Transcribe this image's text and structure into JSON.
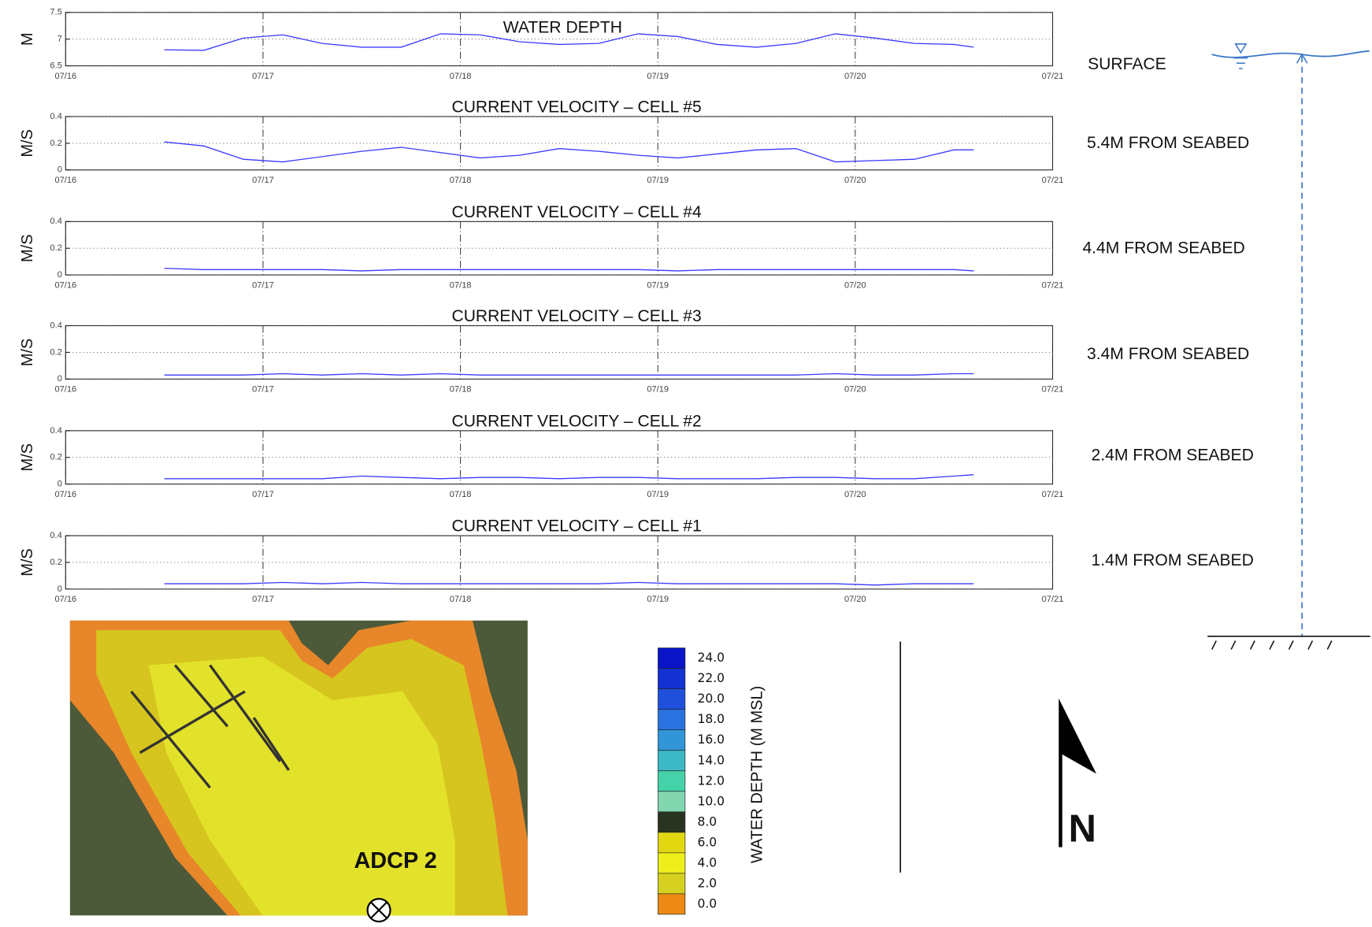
{
  "chart_data": [
    {
      "type": "line",
      "title": "WATER DEPTH",
      "ylabel": "M",
      "x": [
        16.5,
        16.7,
        16.9,
        17.1,
        17.3,
        17.5,
        17.7,
        17.9,
        18.1,
        18.3,
        18.5,
        18.7,
        18.9,
        19.1,
        19.3,
        19.5,
        19.7,
        19.9,
        20.1,
        20.3,
        20.5,
        20.6
      ],
      "series": [
        {
          "color": "#3a3aff",
          "values": [
            6.8,
            6.79,
            7.02,
            7.08,
            6.92,
            6.85,
            6.85,
            7.1,
            7.08,
            6.95,
            6.9,
            6.92,
            7.1,
            7.05,
            6.9,
            6.85,
            6.92,
            7.1,
            7.02,
            6.92,
            6.9,
            6.85
          ]
        }
      ],
      "xlim": [
        16,
        21
      ],
      "xticks": [
        {
          "value": 16,
          "label": "07/16"
        },
        {
          "value": 17,
          "label": "07/17"
        },
        {
          "value": 18,
          "label": "07/18"
        },
        {
          "value": 19,
          "label": "07/19"
        },
        {
          "value": 20,
          "label": "07/20"
        },
        {
          "value": 21,
          "label": "07/21"
        }
      ],
      "ylim": [
        6.5,
        7.5
      ],
      "yticks": [
        6.5,
        7,
        7.5
      ],
      "grid": true
    },
    {
      "type": "line",
      "title": "CURRENT VELOCITY – CELL #5",
      "ylabel": "M/S",
      "x": [
        16.5,
        16.7,
        16.9,
        17.1,
        17.3,
        17.5,
        17.7,
        17.9,
        18.1,
        18.3,
        18.5,
        18.7,
        18.9,
        19.1,
        19.3,
        19.5,
        19.7,
        19.9,
        20.1,
        20.3,
        20.5,
        20.6
      ],
      "series": [
        {
          "color": "#3a3aff",
          "values": [
            0.21,
            0.18,
            0.08,
            0.06,
            0.1,
            0.14,
            0.17,
            0.13,
            0.09,
            0.11,
            0.16,
            0.14,
            0.11,
            0.09,
            0.12,
            0.15,
            0.16,
            0.06,
            0.07,
            0.08,
            0.15,
            0.15
          ]
        }
      ],
      "xlim": [
        16,
        21
      ],
      "xticks": [
        {
          "value": 16,
          "label": "07/16"
        },
        {
          "value": 17,
          "label": "07/17"
        },
        {
          "value": 18,
          "label": "07/18"
        },
        {
          "value": 19,
          "label": "07/19"
        },
        {
          "value": 20,
          "label": "07/20"
        },
        {
          "value": 21,
          "label": "07/21"
        }
      ],
      "ylim": [
        0,
        0.4
      ],
      "yticks": [
        0,
        0.2,
        0.4
      ],
      "grid": true
    },
    {
      "type": "line",
      "title": "CURRENT VELOCITY – CELL #4",
      "ylabel": "M/S",
      "x": [
        16.5,
        16.7,
        16.9,
        17.1,
        17.3,
        17.5,
        17.7,
        17.9,
        18.1,
        18.3,
        18.5,
        18.7,
        18.9,
        19.1,
        19.3,
        19.5,
        19.7,
        19.9,
        20.1,
        20.3,
        20.5,
        20.6
      ],
      "series": [
        {
          "color": "#3a3aff",
          "values": [
            0.05,
            0.04,
            0.04,
            0.04,
            0.04,
            0.03,
            0.04,
            0.04,
            0.04,
            0.04,
            0.04,
            0.04,
            0.04,
            0.03,
            0.04,
            0.04,
            0.04,
            0.04,
            0.04,
            0.04,
            0.04,
            0.03
          ]
        }
      ],
      "xlim": [
        16,
        21
      ],
      "xticks": [
        {
          "value": 16,
          "label": "07/16"
        },
        {
          "value": 17,
          "label": "07/17"
        },
        {
          "value": 18,
          "label": "07/18"
        },
        {
          "value": 19,
          "label": "07/19"
        },
        {
          "value": 20,
          "label": "07/20"
        },
        {
          "value": 21,
          "label": "07/21"
        }
      ],
      "ylim": [
        0,
        0.4
      ],
      "yticks": [
        0,
        0.2,
        0.4
      ],
      "grid": true
    },
    {
      "type": "line",
      "title": "CURRENT VELOCITY – CELL #3",
      "ylabel": "M/S",
      "x": [
        16.5,
        16.7,
        16.9,
        17.1,
        17.3,
        17.5,
        17.7,
        17.9,
        18.1,
        18.3,
        18.5,
        18.7,
        18.9,
        19.1,
        19.3,
        19.5,
        19.7,
        19.9,
        20.1,
        20.3,
        20.5,
        20.6
      ],
      "series": [
        {
          "color": "#3a3aff",
          "values": [
            0.03,
            0.03,
            0.03,
            0.04,
            0.03,
            0.04,
            0.03,
            0.04,
            0.03,
            0.03,
            0.03,
            0.03,
            0.03,
            0.03,
            0.03,
            0.03,
            0.03,
            0.04,
            0.03,
            0.03,
            0.04,
            0.04
          ]
        }
      ],
      "xlim": [
        16,
        21
      ],
      "xticks": [
        {
          "value": 16,
          "label": "07/16"
        },
        {
          "value": 17,
          "label": "07/17"
        },
        {
          "value": 18,
          "label": "07/18"
        },
        {
          "value": 19,
          "label": "07/19"
        },
        {
          "value": 20,
          "label": "07/20"
        },
        {
          "value": 21,
          "label": "07/21"
        }
      ],
      "ylim": [
        0,
        0.4
      ],
      "yticks": [
        0,
        0.2,
        0.4
      ],
      "grid": true
    },
    {
      "type": "line",
      "title": "CURRENT VELOCITY – CELL #2",
      "ylabel": "M/S",
      "x": [
        16.5,
        16.7,
        16.9,
        17.1,
        17.3,
        17.5,
        17.7,
        17.9,
        18.1,
        18.3,
        18.5,
        18.7,
        18.9,
        19.1,
        19.3,
        19.5,
        19.7,
        19.9,
        20.1,
        20.3,
        20.5,
        20.6
      ],
      "series": [
        {
          "color": "#3a3aff",
          "values": [
            0.04,
            0.04,
            0.04,
            0.04,
            0.04,
            0.06,
            0.05,
            0.04,
            0.05,
            0.05,
            0.04,
            0.05,
            0.05,
            0.04,
            0.04,
            0.04,
            0.05,
            0.05,
            0.04,
            0.04,
            0.06,
            0.07
          ]
        }
      ],
      "xlim": [
        16,
        21
      ],
      "xticks": [
        {
          "value": 16,
          "label": "07/16"
        },
        {
          "value": 17,
          "label": "07/17"
        },
        {
          "value": 18,
          "label": "07/18"
        },
        {
          "value": 19,
          "label": "07/19"
        },
        {
          "value": 20,
          "label": "07/20"
        },
        {
          "value": 21,
          "label": "07/21"
        }
      ],
      "ylim": [
        0,
        0.4
      ],
      "yticks": [
        0,
        0.2,
        0.4
      ],
      "grid": true
    },
    {
      "type": "line",
      "title": "CURRENT VELOCITY – CELL #1",
      "ylabel": "M/S",
      "x": [
        16.5,
        16.7,
        16.9,
        17.1,
        17.3,
        17.5,
        17.7,
        17.9,
        18.1,
        18.3,
        18.5,
        18.7,
        18.9,
        19.1,
        19.3,
        19.5,
        19.7,
        19.9,
        20.1,
        20.3,
        20.5,
        20.6
      ],
      "series": [
        {
          "color": "#3a3aff",
          "values": [
            0.04,
            0.04,
            0.04,
            0.05,
            0.04,
            0.05,
            0.04,
            0.04,
            0.04,
            0.04,
            0.04,
            0.04,
            0.05,
            0.04,
            0.04,
            0.04,
            0.04,
            0.04,
            0.03,
            0.04,
            0.04,
            0.04
          ]
        }
      ],
      "xlim": [
        16,
        21
      ],
      "xticks": [
        {
          "value": 16,
          "label": "07/16"
        },
        {
          "value": 17,
          "label": "07/17"
        },
        {
          "value": 18,
          "label": "07/18"
        },
        {
          "value": 19,
          "label": "07/19"
        },
        {
          "value": 20,
          "label": "07/20"
        },
        {
          "value": 21,
          "label": "07/21"
        }
      ],
      "ylim": [
        0,
        0.4
      ],
      "yticks": [
        0,
        0.2,
        0.4
      ],
      "grid": true
    }
  ],
  "depth_profile": {
    "labels": [
      "SURFACE",
      "5.4M FROM SEABED",
      "4.4M FROM SEABED",
      "3.4M FROM SEABED",
      "2.4M FROM SEABED",
      "1.4M FROM SEABED"
    ]
  },
  "map": {
    "label": "ADCP 2"
  },
  "colorbar": {
    "title": "WATER DEPTH (M MSL)",
    "clim": [
      0,
      24
    ],
    "ticks": [
      {
        "value": 24,
        "label": "24.0"
      },
      {
        "value": 22,
        "label": "22.0"
      },
      {
        "value": 20,
        "label": "20.0"
      },
      {
        "value": 18,
        "label": "18.0"
      },
      {
        "value": 16,
        "label": "16.0"
      },
      {
        "value": 14,
        "label": "14.0"
      },
      {
        "value": 12,
        "label": "12.0"
      },
      {
        "value": 10,
        "label": "10.0"
      },
      {
        "value": 8,
        "label": "8.0"
      },
      {
        "value": 6,
        "label": "6.0"
      },
      {
        "value": 4,
        "label": "4.0"
      },
      {
        "value": 2,
        "label": "2.0"
      },
      {
        "value": 0,
        "label": "0.0"
      }
    ],
    "colors": [
      "#0a14c8",
      "#1432d2",
      "#1e50dc",
      "#2a72e0",
      "#3296d6",
      "#3cb8c4",
      "#46d2a8",
      "#82d6b0",
      "#2a3320",
      "#e2d812",
      "#eeee1a",
      "#d6d020",
      "#ec8a14"
    ]
  },
  "north_arrow": {
    "label": "N"
  }
}
